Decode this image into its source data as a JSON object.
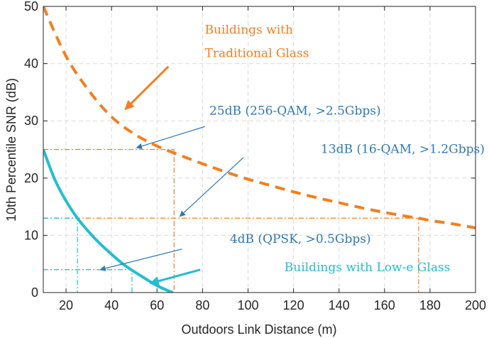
{
  "chart_data": {
    "type": "line",
    "title": "",
    "xlabel": "Outdoors Link Distance (m)",
    "ylabel": "10th Percentile SNR (dB)",
    "xlim": [
      10,
      200
    ],
    "ylim": [
      0,
      50
    ],
    "xticks": [
      20,
      40,
      60,
      80,
      100,
      120,
      140,
      160,
      180,
      200
    ],
    "yticks": [
      0,
      10,
      20,
      30,
      40,
      50
    ],
    "xtick_labels": [
      "20",
      "40",
      "60",
      "80",
      "100",
      "120",
      "140",
      "160",
      "180",
      "200"
    ],
    "ytick_labels": [
      "0",
      "10",
      "20",
      "30",
      "40",
      "50"
    ],
    "grid": true,
    "series": [
      {
        "name": "Buildings with Traditional Glass",
        "color": "#f47e20",
        "style": "dashed",
        "x": [
          10,
          20,
          30,
          40,
          50,
          60,
          70,
          80,
          90,
          100,
          110,
          120,
          130,
          140,
          150,
          160,
          170,
          175,
          180,
          190,
          200
        ],
        "y": [
          50.0,
          41.3,
          35.3,
          30.7,
          27.7,
          25.6,
          24.0,
          22.5,
          21.1,
          19.8,
          18.7,
          17.6,
          16.6,
          15.7,
          14.8,
          14.0,
          13.3,
          13.0,
          12.6,
          12.0,
          11.3
        ]
      },
      {
        "name": "Buildings with Low-e Glass",
        "color": "#22bed0",
        "style": "solid",
        "x": [
          10,
          15,
          20,
          25,
          30,
          35,
          40,
          45,
          49,
          55,
          60,
          65,
          67
        ],
        "y": [
          25.0,
          19.8,
          16.0,
          13.0,
          10.6,
          8.5,
          6.7,
          5.0,
          3.9,
          2.4,
          1.2,
          0.3,
          0.0
        ]
      }
    ],
    "reference_lines": [
      {
        "color": "#f47e20",
        "snr": 25,
        "distance": 67.5
      },
      {
        "color": "#f47e20",
        "snr": 13,
        "distance": 175
      },
      {
        "color": "#22bed0",
        "snr": 13,
        "distance": 25
      },
      {
        "color": "#22bed0",
        "snr": 4,
        "distance": 49
      }
    ],
    "annotations": [
      {
        "id": "trad-line1",
        "text": "Buildings with",
        "color": "#f47e20",
        "x": 81,
        "y": 45.2
      },
      {
        "id": "trad-line2",
        "text": "Traditional Glass",
        "color": "#f47e20",
        "x": 81,
        "y": 41.1
      },
      {
        "id": "snr25",
        "text": "25dB (256-QAM, >2.5Gbps)",
        "color": "#2e78b5",
        "x": 83,
        "y": 31.1
      },
      {
        "id": "snr13",
        "text": "13dB (16-QAM, >1.2Gbps)",
        "color": "#2e78b5",
        "x": 132,
        "y": 24.4
      },
      {
        "id": "snr4",
        "text": "4dB (QPSK, >0.5Gbps)",
        "color": "#2e78b5",
        "x": 92,
        "y": 8.7
      },
      {
        "id": "lowe",
        "text": "Buildings with Low-e Glass",
        "color": "#22bed0",
        "x": 116,
        "y": 3.7
      }
    ],
    "arrows": [
      {
        "id": "arrow-trad",
        "color": "#f47e20",
        "bold": true,
        "from": [
          65,
          39.5
        ],
        "to": [
          46,
          32
        ]
      },
      {
        "id": "arrow-25",
        "color": "#2e78b5",
        "bold": false,
        "from": [
          81,
          29
        ],
        "to": [
          51,
          25.3
        ]
      },
      {
        "id": "arrow-13",
        "color": "#2e78b5",
        "bold": false,
        "from": [
          98,
          23.6
        ],
        "to": [
          70,
          13.3
        ]
      },
      {
        "id": "arrow-4",
        "color": "#2e78b5",
        "bold": false,
        "from": [
          71,
          7.6
        ],
        "to": [
          35,
          4.0
        ]
      },
      {
        "id": "arrow-lowe",
        "color": "#22bed0",
        "bold": true,
        "from": [
          79,
          4.0
        ],
        "to": [
          57,
          1.6
        ]
      }
    ]
  }
}
